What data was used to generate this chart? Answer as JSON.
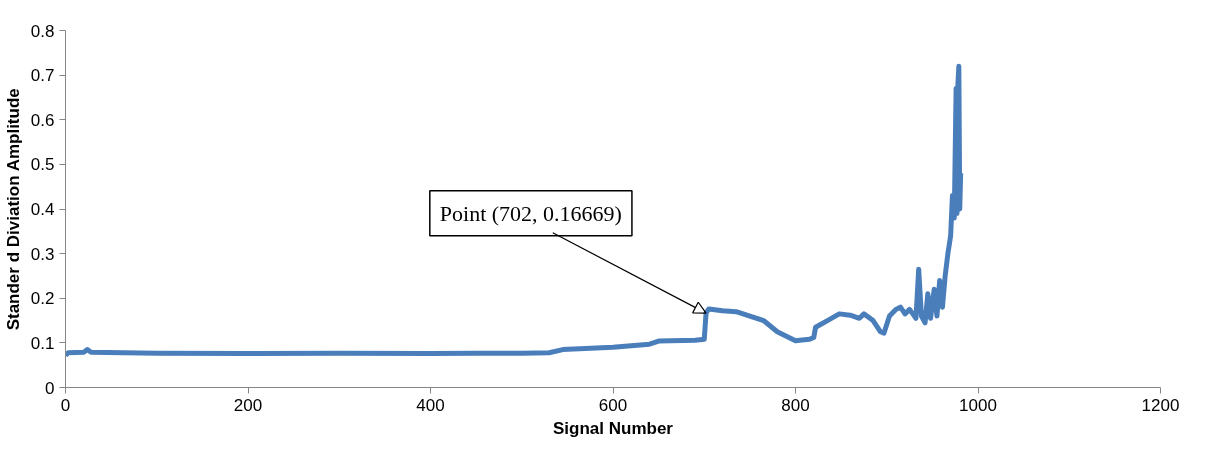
{
  "chart_data": {
    "type": "line",
    "xlabel": "Signal Number",
    "ylabel": "Stander d Diviation Amplitude",
    "xlim": [
      0,
      1200
    ],
    "xticks": [
      0,
      200,
      400,
      600,
      800,
      1000,
      1200
    ],
    "ylim": [
      0,
      0.8
    ],
    "yticks": [
      0,
      0.1,
      0.2,
      0.3,
      0.4,
      0.5,
      0.6,
      0.7,
      0.8
    ],
    "line_style": "solid",
    "annotations": [
      {
        "text": "Point (702, 0.16669)",
        "x": 702,
        "y": 0.16669
      }
    ],
    "series": [
      {
        "color": "#4a7ebb",
        "x": [
          0,
          3,
          20,
          24,
          28,
          100,
          200,
          300,
          400,
          450,
          500,
          530,
          545,
          600,
          640,
          650,
          690,
          700,
          702,
          705,
          720,
          735,
          750,
          765,
          780,
          800,
          815,
          820,
          822,
          835,
          848,
          860,
          870,
          875,
          885,
          893,
          897,
          903,
          910,
          915,
          920,
          925,
          932,
          935,
          938,
          942,
          945,
          948,
          952,
          955,
          958,
          961,
          964,
          967,
          970,
          972,
          974,
          976,
          977,
          978,
          979,
          980,
          981
        ],
        "values": [
          0.072,
          0.078,
          0.079,
          0.085,
          0.079,
          0.077,
          0.076,
          0.077,
          0.076,
          0.077,
          0.077,
          0.078,
          0.085,
          0.09,
          0.097,
          0.104,
          0.106,
          0.108,
          0.167,
          0.176,
          0.172,
          0.17,
          0.16,
          0.15,
          0.125,
          0.105,
          0.108,
          0.112,
          0.135,
          0.15,
          0.165,
          0.162,
          0.155,
          0.165,
          0.15,
          0.125,
          0.122,
          0.16,
          0.175,
          0.18,
          0.165,
          0.175,
          0.155,
          0.265,
          0.16,
          0.145,
          0.21,
          0.155,
          0.22,
          0.16,
          0.24,
          0.18,
          0.25,
          0.3,
          0.34,
          0.43,
          0.38,
          0.67,
          0.39,
          0.68,
          0.72,
          0.4,
          0.48
        ]
      }
    ]
  }
}
